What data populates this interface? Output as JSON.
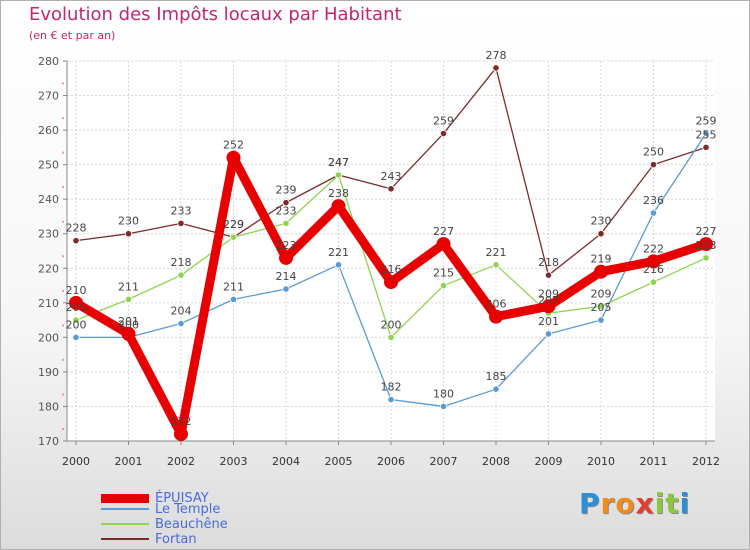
{
  "header": {
    "title": "Evolution des Impôts locaux par Habitant",
    "subtitle": "(en € et par an)"
  },
  "chart_data": {
    "type": "line",
    "title": "Evolution des Impôts locaux par Habitant",
    "subtitle": "(en € et par an)",
    "xlabel": "",
    "ylabel": "",
    "ylim": [
      170,
      280
    ],
    "yticks": [
      170,
      180,
      190,
      200,
      210,
      220,
      230,
      240,
      250,
      260,
      270,
      280
    ],
    "grid": true,
    "legend_position": "bottom-left",
    "categories": [
      "2000",
      "2001",
      "2002",
      "2003",
      "2004",
      "2005",
      "2006",
      "2007",
      "2008",
      "2009",
      "2010",
      "2011",
      "2012"
    ],
    "series": [
      {
        "name": "Fortan",
        "color": "#7b2c2c",
        "values": [
          228,
          230,
          233,
          229,
          239,
          247,
          243,
          259,
          278,
          218,
          230,
          250,
          255
        ],
        "labels": [
          "228",
          "230",
          "233",
          "229",
          "239",
          "247",
          "243",
          "259",
          "278",
          "218",
          "230",
          "250",
          "255"
        ]
      },
      {
        "name": "Beauchêne",
        "color": "#8ed450",
        "values": [
          205,
          211,
          218,
          229,
          233,
          247,
          200,
          215,
          221,
          207,
          209,
          216,
          223
        ],
        "labels": [
          "205",
          "211",
          "218",
          "229",
          "233",
          "247",
          "200",
          "215",
          "221",
          "207",
          "209",
          "216",
          "223"
        ]
      },
      {
        "name": "Le Temple",
        "color": "#5b9bd5",
        "values": [
          200,
          200,
          204,
          211,
          214,
          221,
          182,
          180,
          185,
          201,
          205,
          236,
          259
        ],
        "labels": [
          "200",
          "200",
          "204",
          "211",
          "214",
          "221",
          "182",
          "180",
          "185",
          "201",
          "205",
          "236",
          "259"
        ]
      },
      {
        "name": "ÉPUISAY",
        "color": "#e80000",
        "values": [
          210,
          201,
          172,
          252,
          223,
          238,
          216,
          227,
          206,
          209,
          219,
          222,
          227
        ],
        "labels": [
          "210",
          "201",
          "172",
          "252",
          "223",
          "238",
          "216",
          "227",
          "206",
          "209",
          "219",
          "222",
          "227"
        ]
      }
    ]
  },
  "legend": [
    {
      "name": "ÉPUISAY",
      "color": "#e80000"
    },
    {
      "name": "Le Temple",
      "color": "#5b9bd5"
    },
    {
      "name": "Beauchêne",
      "color": "#8ed450"
    },
    {
      "name": "Fortan",
      "color": "#7b2c2c"
    }
  ],
  "logo": {
    "letters": [
      "P",
      "r",
      "o",
      "x",
      "i",
      "t",
      "i"
    ],
    "colors": [
      "#2b8fd6",
      "#ef8c1e",
      "#ef8c1e",
      "#e63c2f",
      "#8dc63f",
      "#8dc63f",
      "#2b8fd6"
    ]
  }
}
